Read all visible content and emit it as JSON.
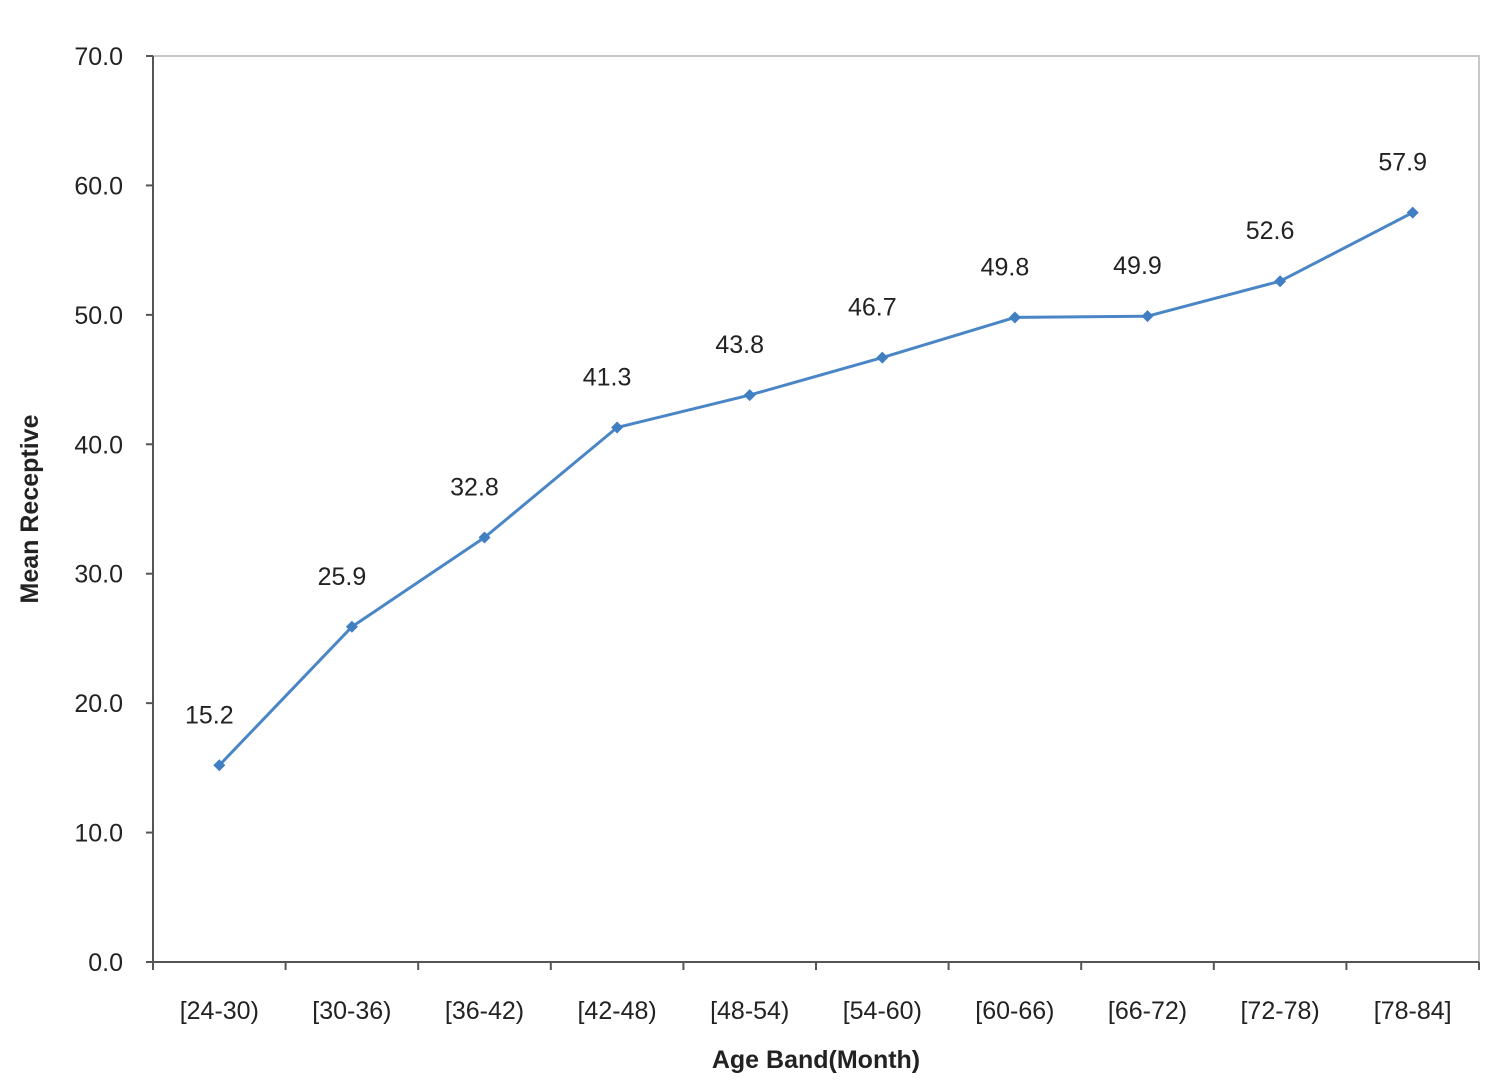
{
  "chart_data": {
    "type": "line",
    "title": "",
    "xlabel": "Age Band(Month)",
    "ylabel": "Mean Receptive",
    "categories": [
      "[24-30)",
      "[30-36)",
      "[36-42)",
      "[42-48)",
      "[48-54)",
      "[54-60)",
      "[60-66)",
      "[66-72)",
      "[72-78)",
      "[78-84]"
    ],
    "series": [
      {
        "values": [
          15.2,
          25.9,
          32.8,
          41.3,
          43.8,
          46.7,
          49.8,
          49.9,
          52.6,
          57.9
        ]
      }
    ],
    "data_labels": [
      "15.2",
      "25.9",
      "32.8",
      "41.3",
      "43.8",
      "46.7",
      "49.8",
      "49.9",
      "52.6",
      "57.9"
    ],
    "ylim": [
      0,
      70
    ],
    "yticks": [
      "0.0",
      "10.0",
      "20.0",
      "30.0",
      "40.0",
      "50.0",
      "60.0",
      "70.0"
    ],
    "grid": false,
    "legend": "none",
    "colors": {
      "line": "#4a86c6",
      "marker": "#3f7fc2",
      "axis": "#555555",
      "frame": "#c8c8c8"
    }
  }
}
